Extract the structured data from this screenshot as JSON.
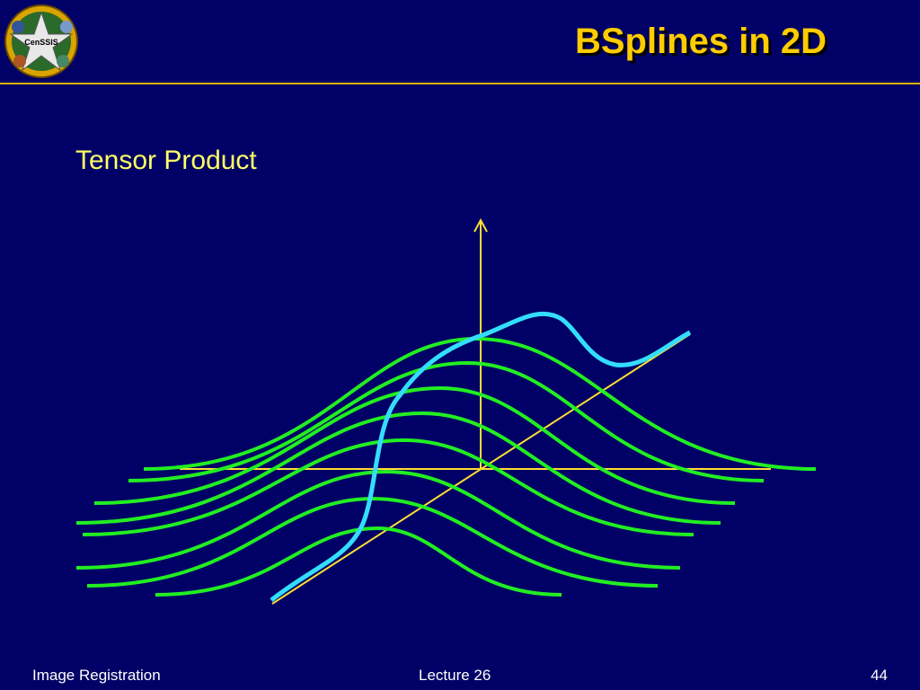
{
  "header": {
    "title": "BSplines in 2D",
    "logo_text": "CenSSIS"
  },
  "body": {
    "heading": "Tensor Product"
  },
  "footer": {
    "left": "Image Registration",
    "center": "Lecture 26",
    "right": "44"
  }
}
